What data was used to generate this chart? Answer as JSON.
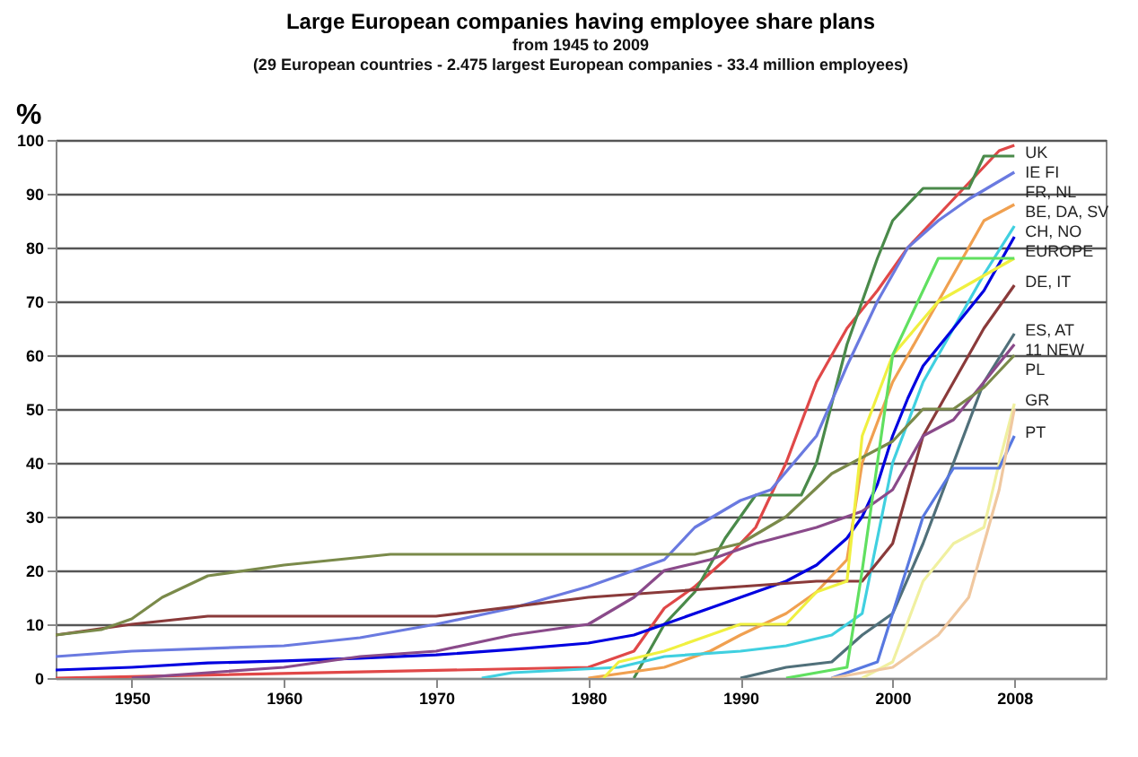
{
  "chart_data": {
    "type": "line",
    "title": "Large European companies having employee share plans",
    "subtitle": "from 1945 to 2009",
    "annotations": [
      "(29 European countries - 2.475 largest European companies - 33.4 million employees)"
    ],
    "ylabel": "%",
    "xlim": [
      1945,
      2014
    ],
    "xticks": [
      1950,
      1960,
      1970,
      1980,
      1990,
      2000,
      2008
    ],
    "ylim": [
      0,
      100
    ],
    "yticks": [
      0,
      10,
      20,
      30,
      40,
      50,
      60,
      70,
      80,
      90,
      100
    ],
    "grid": "y",
    "legend": false,
    "marker": "none",
    "line_style": "solid",
    "series": [
      {
        "name": "UK",
        "color": "#e04848",
        "x": [
          1945,
          1980,
          1983,
          1985,
          1987,
          1989,
          1991,
          1993,
          1995,
          1997,
          1999,
          2001,
          2003,
          2005,
          2007,
          2008
        ],
        "values": [
          0,
          2,
          5,
          13,
          17,
          22,
          28,
          40,
          55,
          65,
          72,
          80,
          86,
          92,
          98,
          99
        ]
      },
      {
        "name": "IE FI",
        "color": "#4a8a4a",
        "x": [
          1983,
          1985,
          1987,
          1989,
          1991,
          1994,
          1995,
          1997,
          1999,
          2000,
          2002,
          2005,
          2006,
          2008
        ],
        "values": [
          0,
          10,
          16,
          26,
          34,
          34,
          40,
          62,
          78,
          85,
          91,
          91,
          97,
          97
        ]
      },
      {
        "name": "FR, NL",
        "color": "#6a7ae0",
        "x": [
          1945,
          1950,
          1960,
          1965,
          1970,
          1975,
          1980,
          1983,
          1985,
          1987,
          1990,
          1992,
          1995,
          1997,
          1999,
          2001,
          2003,
          2005,
          2008
        ],
        "values": [
          4,
          5,
          6,
          7.5,
          10,
          13,
          17,
          20,
          22,
          28,
          33,
          35,
          45,
          58,
          70,
          80,
          85,
          89,
          94
        ]
      },
      {
        "name": "BE, DA, SV",
        "color": "#f0a050",
        "x": [
          1980,
          1985,
          1988,
          1990,
          1993,
          1995,
          1997,
          1998,
          2000,
          2002,
          2004,
          2006,
          2008
        ],
        "values": [
          0,
          2,
          5,
          8,
          12,
          16,
          22,
          40,
          55,
          65,
          75,
          85,
          88
        ]
      },
      {
        "name": "CH, NO",
        "color": "#40d0e0",
        "x": [
          1973,
          1975,
          1982,
          1985,
          1990,
          1993,
          1996,
          1998,
          2000,
          2002,
          2004,
          2006,
          2008
        ],
        "values": [
          0,
          1,
          2,
          4,
          5,
          6,
          8,
          12,
          40,
          55,
          65,
          75,
          84
        ]
      },
      {
        "name": "EUROPE",
        "color": "#0000e0",
        "x": [
          1945,
          1950,
          1955,
          1960,
          1965,
          1970,
          1975,
          1980,
          1983,
          1985,
          1988,
          1990,
          1993,
          1995,
          1997,
          1998,
          1999,
          2000,
          2001,
          2002,
          2004,
          2006,
          2008
        ],
        "values": [
          1.5,
          2,
          2.8,
          3.2,
          3.7,
          4.3,
          5.3,
          6.5,
          8,
          10,
          13,
          15,
          18,
          21,
          26,
          30,
          36,
          45,
          52,
          58,
          65,
          72,
          82
        ]
      },
      {
        "name": "DE, IT",
        "color": "#8a3a3a",
        "x": [
          1945,
          1950,
          1955,
          1970,
          1980,
          1985,
          1990,
          1995,
          1998,
          2000,
          2002,
          2004,
          2006,
          2008
        ],
        "values": [
          8,
          10,
          11.5,
          11.5,
          15,
          16,
          17,
          18,
          18,
          25,
          45,
          55,
          65,
          73
        ]
      },
      {
        "name": "ES, AT",
        "color": "#50707a",
        "x": [
          1990,
          1993,
          1996,
          1998,
          2000,
          2002,
          2004,
          2006,
          2008
        ],
        "values": [
          0,
          2,
          3,
          8,
          12,
          25,
          40,
          55,
          64
        ]
      },
      {
        "name": "11 NEW",
        "color": "#8a4a8a",
        "x": [
          1950,
          1955,
          1960,
          1965,
          1970,
          1975,
          1980,
          1983,
          1985,
          1988,
          1991,
          1995,
          1998,
          2000,
          2002,
          2004,
          2006,
          2008
        ],
        "values": [
          0,
          1,
          2,
          4,
          5,
          8,
          10,
          15,
          20,
          22,
          25,
          28,
          31,
          35,
          45,
          48,
          55,
          62
        ]
      },
      {
        "name": "PL",
        "color": "#7a8a4a",
        "x": [
          1945,
          1948,
          1950,
          1952,
          1955,
          1960,
          1967,
          1987,
          1990,
          1993,
          1996,
          2000,
          2002,
          2004,
          2006,
          2008
        ],
        "values": [
          8,
          9,
          11,
          15,
          19,
          21,
          23,
          23,
          25,
          30,
          38,
          44,
          50,
          50,
          54,
          60
        ]
      },
      {
        "name": "GR",
        "color": "#f0f0a0",
        "x": [
          1998,
          2000,
          2002,
          2004,
          2006,
          2007,
          2008
        ],
        "values": [
          0,
          3,
          18,
          25,
          28,
          40,
          51
        ]
      },
      {
        "name": "PT",
        "color": "#5878e0",
        "x": [
          1996,
          1999,
          2000,
          2002,
          2004,
          2007,
          2008
        ],
        "values": [
          0,
          3,
          12,
          30,
          39,
          39,
          45
        ]
      },
      {
        "color": "#f0c8a0",
        "x": [
          1996,
          2000,
          2003,
          2005,
          2007,
          2008
        ],
        "values": [
          0,
          2,
          8,
          15,
          35,
          50
        ]
      },
      {
        "color": "#f0f040",
        "x": [
          1981,
          1982,
          1985,
          1988,
          1990,
          1993,
          1995,
          1997,
          1998,
          2000,
          2003,
          2008
        ],
        "values": [
          0,
          3,
          5,
          8,
          10,
          10,
          16,
          18,
          45,
          60,
          70,
          78
        ]
      },
      {
        "color": "#60e060",
        "x": [
          1993,
          1997,
          1998,
          2000,
          2003,
          2008
        ],
        "values": [
          0,
          2,
          20,
          60,
          78,
          78
        ]
      }
    ]
  }
}
